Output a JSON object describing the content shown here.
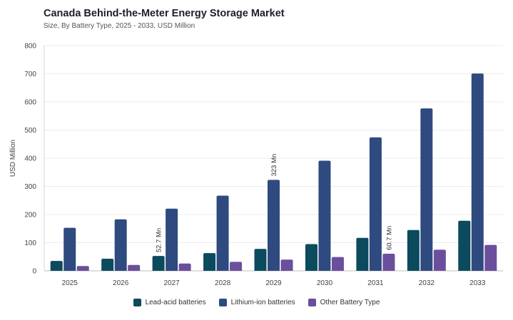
{
  "chart_data": {
    "type": "bar",
    "title": "Canada Behind-the-Meter Energy Storage Market",
    "subtitle": "Size, By Battery Type, 2025 - 2033, USD Million",
    "ylabel": "USD Million",
    "xlabel": "",
    "ylim": [
      0,
      800
    ],
    "yticks": [
      0,
      100,
      200,
      300,
      400,
      500,
      600,
      700,
      800
    ],
    "grid": true,
    "legend_position": "bottom",
    "categories": [
      "2025",
      "2026",
      "2027",
      "2028",
      "2029",
      "2030",
      "2031",
      "2032",
      "2033"
    ],
    "series": [
      {
        "name": "Lead-acid batteries",
        "color": "#0c4a5e",
        "values": [
          35,
          43,
          52.7,
          63,
          78,
          95,
          117,
          145,
          178
        ]
      },
      {
        "name": "Lithium-ion batteries",
        "color": "#2e4a7f",
        "values": [
          153,
          183,
          221,
          267,
          323,
          391,
          474,
          577,
          701
        ]
      },
      {
        "name": "Other Battery Type",
        "color": "#6b4f9c",
        "values": [
          17,
          21,
          26,
          32,
          40,
          49,
          60.7,
          75,
          92
        ]
      }
    ],
    "annotations": [
      {
        "series": 0,
        "category": "2027",
        "text": "52.7 Mn"
      },
      {
        "series": 1,
        "category": "2029",
        "text": "323 Mn"
      },
      {
        "series": 2,
        "category": "2031",
        "text": "60.7 Mn"
      }
    ]
  }
}
